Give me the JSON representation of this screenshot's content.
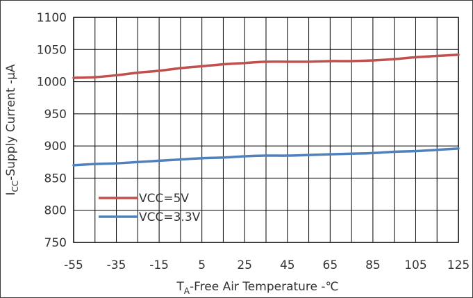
{
  "chart_data": {
    "type": "line",
    "x": [
      -55,
      -45,
      -35,
      -25,
      -15,
      -5,
      5,
      15,
      25,
      35,
      45,
      55,
      65,
      75,
      85,
      95,
      105,
      115,
      125
    ],
    "series": [
      {
        "name": "VCC=5V",
        "color": "#c0504d",
        "values": [
          1006,
          1007,
          1010,
          1014,
          1017,
          1021,
          1024,
          1027,
          1029,
          1031,
          1031,
          1031,
          1032,
          1032,
          1033,
          1035,
          1038,
          1040,
          1042
        ]
      },
      {
        "name": "VCC=3.3V",
        "color": "#4f81bd",
        "values": [
          870,
          872,
          873,
          875,
          877,
          879,
          881,
          882,
          884,
          885,
          885,
          886,
          887,
          888,
          889,
          891,
          892,
          894,
          896
        ]
      }
    ],
    "xlabel_main": "T",
    "xlabel_sub": "A",
    "xlabel_rest": "-Free Air Temperature -℃",
    "ylabel_main": "I",
    "ylabel_sub": "CC",
    "ylabel_rest": "-Supply Current -µA",
    "xlim": [
      -55,
      125
    ],
    "ylim": [
      750,
      1100
    ],
    "x_ticks": [
      -55,
      -35,
      -15,
      5,
      25,
      45,
      65,
      85,
      105,
      125
    ],
    "y_ticks": [
      750,
      800,
      850,
      900,
      950,
      1000,
      1050,
      1100
    ],
    "grid_x_step": 10,
    "grid_y_step": 50,
    "grid": true,
    "legend_position": "lower-left"
  }
}
